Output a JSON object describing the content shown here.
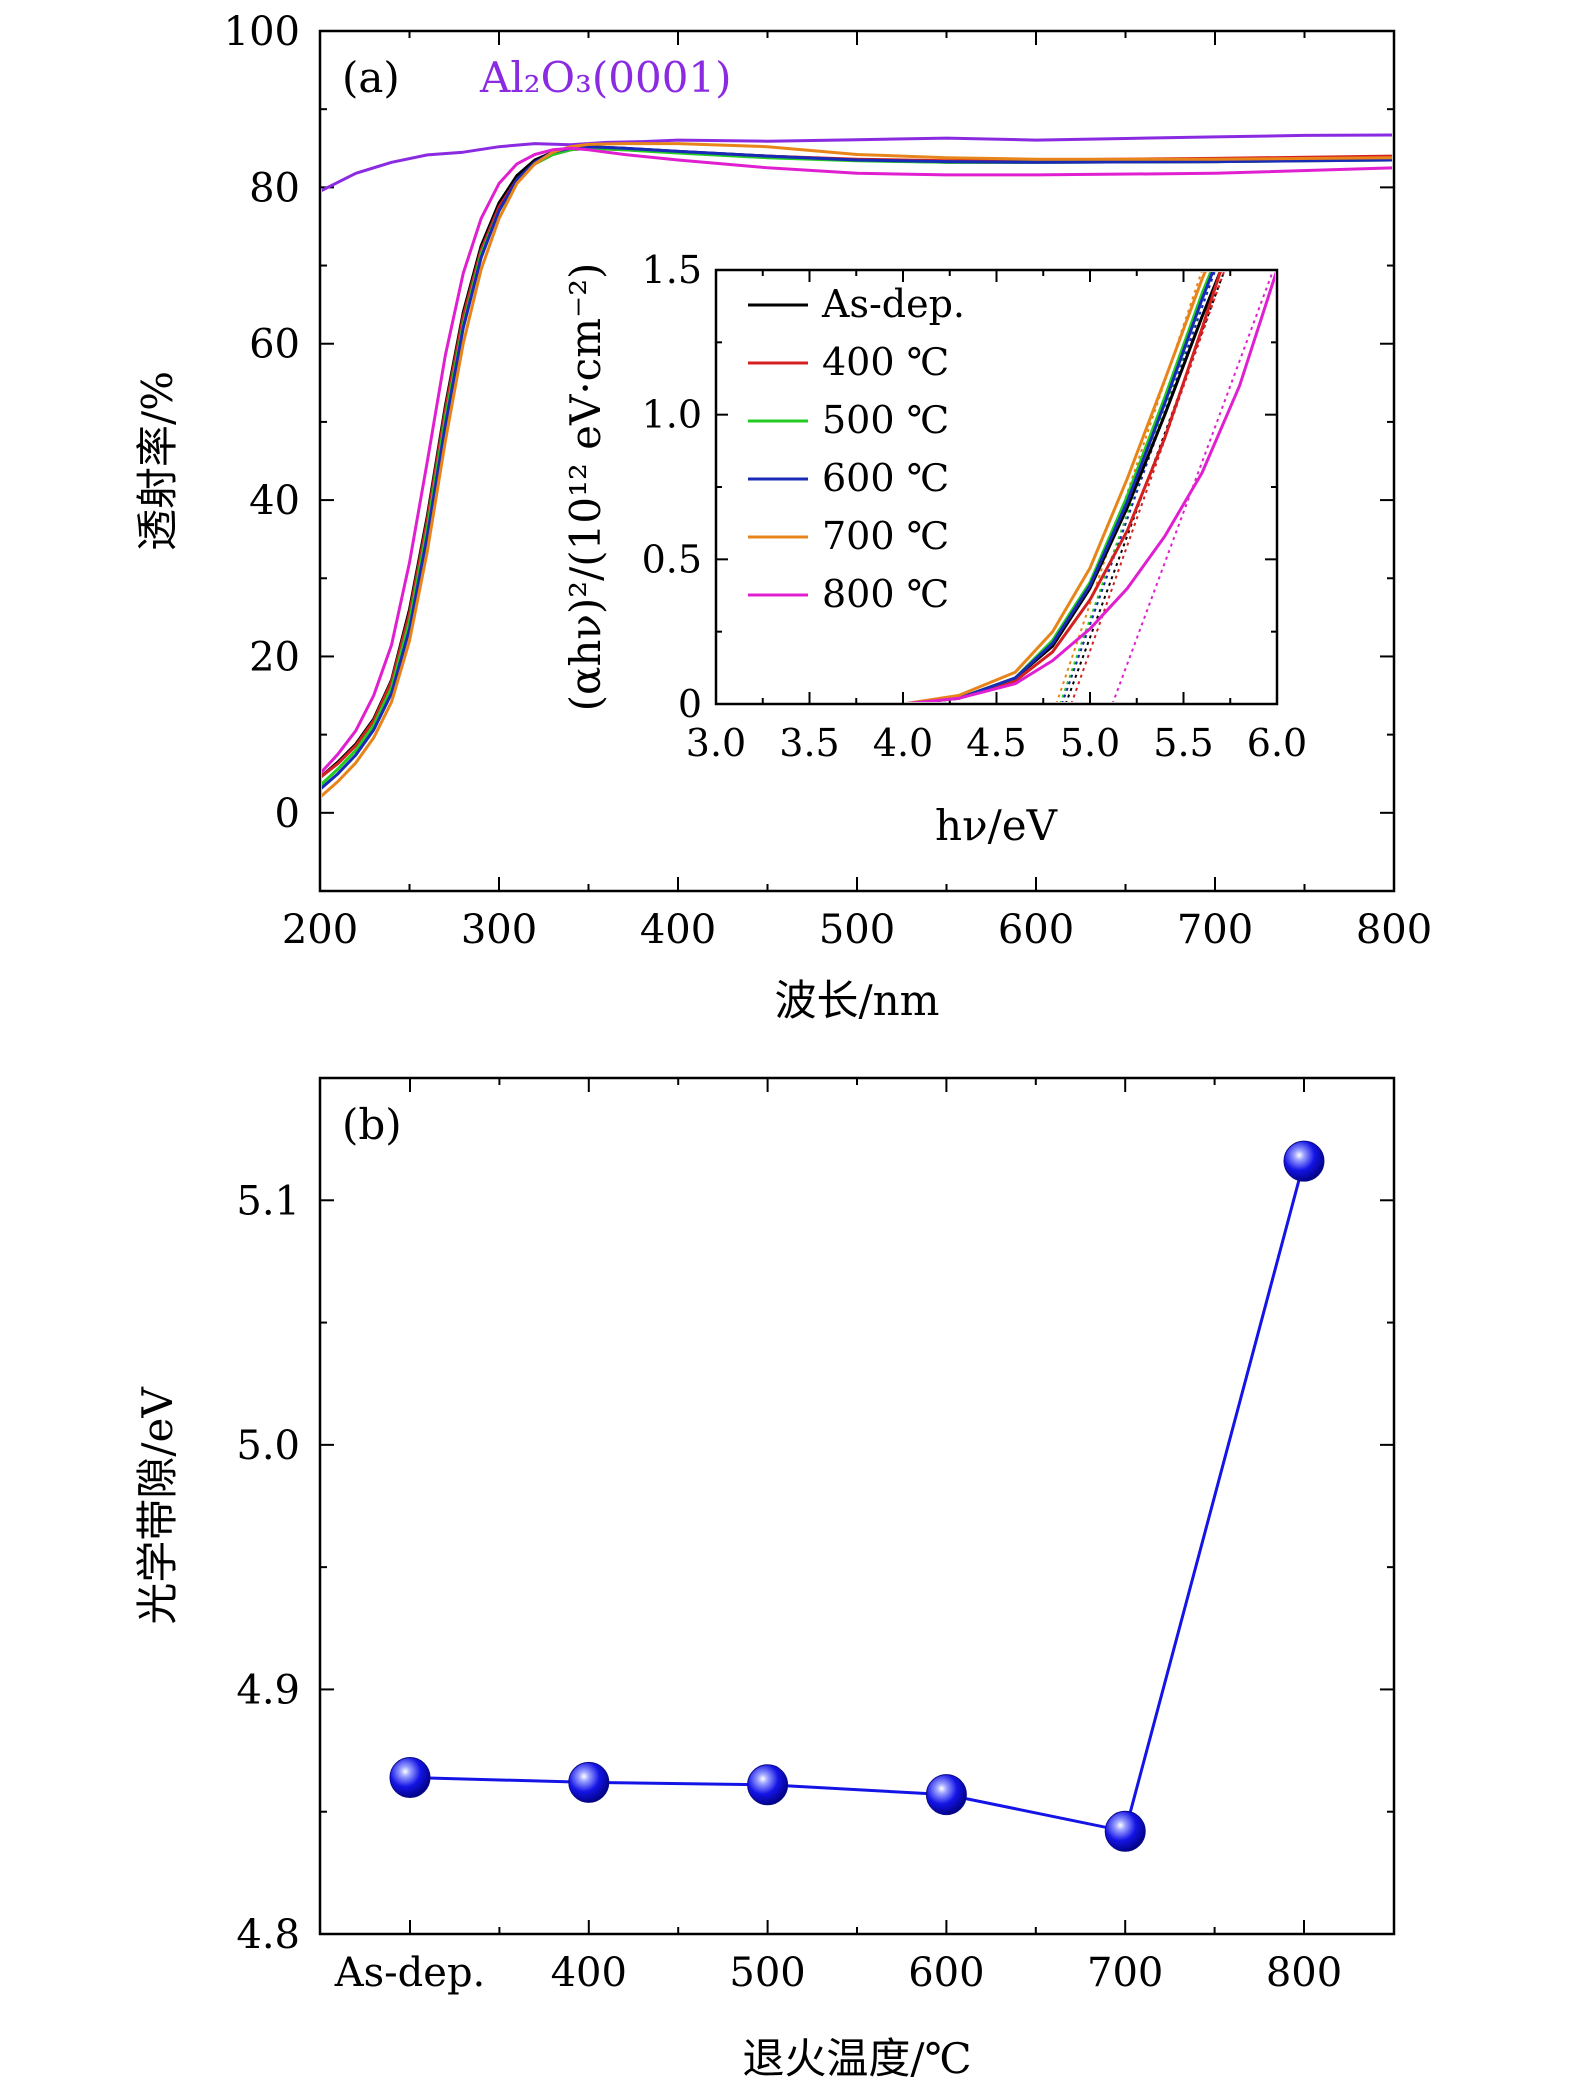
{
  "chart_data": [
    {
      "panel": "a",
      "type": "line",
      "panel_label": "(a)",
      "substrate_label": "Al₂O₃(0001)",
      "xlabel": "波长/nm",
      "ylabel": "透射率/%",
      "xlim": [
        200,
        800
      ],
      "ylim": [
        -10,
        100
      ],
      "xticks": [
        200,
        300,
        400,
        500,
        600,
        700,
        800
      ],
      "yticks": [
        0,
        20,
        40,
        60,
        80,
        100
      ],
      "series": [
        {
          "name": "Al₂O₃(0001)",
          "color": "#8a2be2",
          "x": [
            200,
            220,
            240,
            260,
            280,
            300,
            320,
            340,
            360,
            380,
            400,
            450,
            500,
            550,
            600,
            650,
            700,
            750,
            800
          ],
          "y": [
            79.5,
            81.8,
            83.2,
            84.0,
            84.6,
            85.2,
            85.5,
            85.6,
            85.8,
            85.8,
            85.9,
            86.0,
            86.1,
            86.2,
            86.2,
            86.3,
            86.4,
            86.5,
            86.8
          ]
        },
        {
          "name": "As-dep.",
          "color": "#000000",
          "x": [
            200,
            210,
            220,
            230,
            240,
            250,
            260,
            270,
            280,
            290,
            300,
            310,
            320,
            330,
            340,
            350,
            370,
            400,
            450,
            500,
            550,
            600,
            700,
            800
          ],
          "y": [
            4.5,
            6.5,
            8.8,
            12.0,
            17.0,
            26.0,
            38.0,
            52.0,
            64.0,
            72.5,
            78.0,
            81.5,
            83.5,
            84.5,
            85.0,
            85.2,
            85.0,
            84.6,
            84.0,
            83.5,
            83.2,
            83.2,
            83.3,
            83.6
          ]
        },
        {
          "name": "400 ℃",
          "color": "#d42020",
          "x": [
            200,
            210,
            220,
            230,
            240,
            250,
            260,
            270,
            280,
            290,
            300,
            310,
            320,
            330,
            340,
            350,
            370,
            400,
            450,
            500,
            550,
            600,
            700,
            800
          ],
          "y": [
            4.5,
            6.3,
            8.6,
            11.8,
            16.8,
            25.5,
            37.5,
            51.5,
            63.5,
            72.0,
            77.5,
            81.0,
            83.0,
            84.2,
            84.8,
            85.0,
            84.8,
            84.5,
            84.0,
            83.6,
            83.4,
            83.5,
            83.7,
            84.0
          ]
        },
        {
          "name": "500 ℃",
          "color": "#22cc22",
          "x": [
            200,
            210,
            220,
            230,
            240,
            250,
            260,
            270,
            280,
            290,
            300,
            310,
            320,
            330,
            340,
            350,
            370,
            400,
            450,
            500,
            550,
            600,
            700,
            800
          ],
          "y": [
            3.5,
            5.6,
            8.0,
            11.2,
            16.0,
            24.5,
            36.5,
            50.5,
            62.5,
            71.5,
            77.0,
            80.8,
            83.0,
            84.2,
            84.8,
            85.0,
            84.8,
            84.4,
            83.8,
            83.4,
            83.2,
            83.2,
            83.3,
            83.5
          ]
        },
        {
          "name": "600 ℃",
          "color": "#1a2ab8",
          "x": [
            200,
            210,
            220,
            230,
            240,
            250,
            260,
            270,
            280,
            290,
            300,
            310,
            320,
            330,
            340,
            350,
            370,
            400,
            450,
            500,
            550,
            600,
            700,
            800
          ],
          "y": [
            3.0,
            5.0,
            7.4,
            10.6,
            15.3,
            23.5,
            35.5,
            49.5,
            62.0,
            71.0,
            77.0,
            81.0,
            83.2,
            84.5,
            85.0,
            85.2,
            85.0,
            84.6,
            84.0,
            83.5,
            83.3,
            83.2,
            83.3,
            83.5
          ]
        },
        {
          "name": "700 ℃",
          "color": "#e8851a",
          "x": [
            200,
            210,
            220,
            230,
            240,
            250,
            260,
            270,
            280,
            290,
            300,
            310,
            320,
            330,
            340,
            350,
            370,
            400,
            450,
            500,
            550,
            600,
            700,
            800
          ],
          "y": [
            2.0,
            4.0,
            6.4,
            9.6,
            14.2,
            22.0,
            33.5,
            47.5,
            60.0,
            69.5,
            76.0,
            80.5,
            83.0,
            84.5,
            85.2,
            85.5,
            85.6,
            85.6,
            85.2,
            84.2,
            83.8,
            83.6,
            83.6,
            83.8
          ]
        },
        {
          "name": "800 ℃",
          "color": "#e020d0",
          "x": [
            200,
            210,
            220,
            230,
            240,
            250,
            260,
            270,
            280,
            290,
            300,
            310,
            320,
            330,
            340,
            350,
            370,
            400,
            450,
            500,
            550,
            600,
            700,
            800
          ],
          "y": [
            5.0,
            7.5,
            10.5,
            15.0,
            21.5,
            32.0,
            45.0,
            58.5,
            69.0,
            76.0,
            80.5,
            83.0,
            84.2,
            84.8,
            85.0,
            84.8,
            84.2,
            83.5,
            82.5,
            81.8,
            81.6,
            81.6,
            81.8,
            82.5
          ]
        }
      ]
    },
    {
      "panel": "a-inset",
      "type": "line",
      "xlabel": "hν/eV",
      "ylabel": "(αhν)²/(10¹² eV·cm⁻²)",
      "xlim": [
        3.0,
        6.0
      ],
      "ylim": [
        0,
        1.5
      ],
      "xticks": [
        3.0,
        3.5,
        4.0,
        4.5,
        5.0,
        5.5,
        6.0
      ],
      "xtick_labels": [
        "3.0",
        "3.5",
        "4.0",
        "4.5",
        "5.0",
        "5.5",
        "6.0"
      ],
      "yticks": [
        0,
        0.5,
        1.0,
        1.5
      ],
      "ytick_labels": [
        "0",
        "0.5",
        "1.0",
        "1.5"
      ],
      "legend": [
        "As-dep.",
        "400 ℃",
        "500 ℃",
        "600 ℃",
        "700 ℃",
        "800 ℃"
      ],
      "series": [
        {
          "name": "As-dep.",
          "color": "#000000",
          "x": [
            3.0,
            4.0,
            4.3,
            4.6,
            4.8,
            5.0,
            5.2,
            5.4,
            5.6,
            5.7
          ],
          "y": [
            0,
            0,
            0.02,
            0.09,
            0.2,
            0.4,
            0.68,
            1.0,
            1.34,
            1.5
          ],
          "fit_x": [
            4.87,
            5.72
          ],
          "fit_y": [
            0,
            1.5
          ]
        },
        {
          "name": "400 ℃",
          "color": "#d42020",
          "x": [
            3.0,
            4.0,
            4.3,
            4.6,
            4.8,
            5.0,
            5.2,
            5.4,
            5.6,
            5.7
          ],
          "y": [
            0,
            0,
            0.02,
            0.08,
            0.18,
            0.36,
            0.6,
            0.92,
            1.3,
            1.5
          ],
          "fit_x": [
            4.9,
            5.72
          ],
          "fit_y": [
            0,
            1.5
          ]
        },
        {
          "name": "500 ℃",
          "color": "#22cc22",
          "x": [
            3.0,
            4.0,
            4.3,
            4.6,
            4.8,
            5.0,
            5.2,
            5.4,
            5.6,
            5.65
          ],
          "y": [
            0,
            0,
            0.02,
            0.09,
            0.22,
            0.42,
            0.72,
            1.06,
            1.42,
            1.5
          ],
          "fit_x": [
            4.84,
            5.66
          ],
          "fit_y": [
            0,
            1.5
          ]
        },
        {
          "name": "600 ℃",
          "color": "#1a2ab8",
          "x": [
            3.0,
            4.0,
            4.3,
            4.6,
            4.8,
            5.0,
            5.2,
            5.4,
            5.6,
            5.66
          ],
          "y": [
            0,
            0,
            0.02,
            0.09,
            0.21,
            0.41,
            0.7,
            1.04,
            1.4,
            1.5
          ],
          "fit_x": [
            4.85,
            5.67
          ],
          "fit_y": [
            0,
            1.5
          ]
        },
        {
          "name": "700 ℃",
          "color": "#e8851a",
          "x": [
            3.0,
            4.0,
            4.3,
            4.6,
            4.8,
            5.0,
            5.2,
            5.4,
            5.6,
            5.62
          ],
          "y": [
            0,
            0,
            0.03,
            0.11,
            0.25,
            0.47,
            0.78,
            1.12,
            1.47,
            1.5
          ],
          "fit_x": [
            4.82,
            5.6
          ],
          "fit_y": [
            0,
            1.5
          ]
        },
        {
          "name": "800 ℃",
          "color": "#e020d0",
          "x": [
            3.0,
            4.0,
            4.3,
            4.6,
            4.8,
            5.0,
            5.2,
            5.4,
            5.6,
            5.8,
            6.0
          ],
          "y": [
            0,
            0,
            0.02,
            0.07,
            0.15,
            0.26,
            0.4,
            0.58,
            0.8,
            1.1,
            1.5
          ],
          "fit_x": [
            5.12,
            5.98
          ],
          "fit_y": [
            0,
            1.5
          ]
        }
      ]
    },
    {
      "panel": "b",
      "type": "line",
      "panel_label": "(b)",
      "xlabel": "退火温度/℃",
      "ylabel": "光学带隙/eV",
      "categories": [
        "As-dep.",
        "400",
        "500",
        "600",
        "700",
        "800"
      ],
      "values": [
        4.864,
        4.862,
        4.861,
        4.857,
        4.842,
        5.116
      ],
      "ylim": [
        4.8,
        5.15
      ],
      "yticks": [
        4.8,
        4.9,
        5.0,
        5.1
      ],
      "ytick_labels": [
        "4.8",
        "4.9",
        "5.0",
        "5.1"
      ],
      "color": "#1414e6"
    }
  ]
}
